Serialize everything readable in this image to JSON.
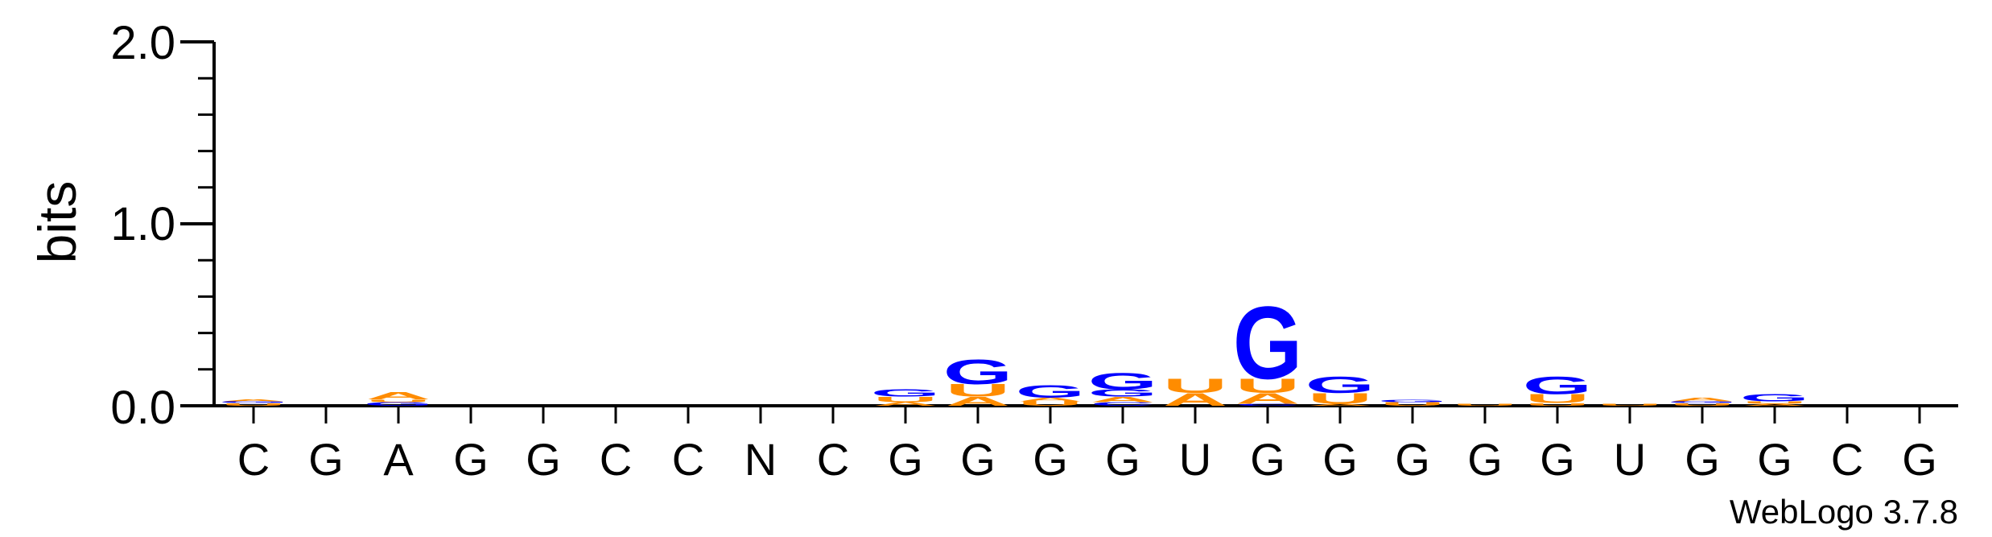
{
  "chart_data": {
    "type": "sequence-logo",
    "ylabel": "bits",
    "ylim": [
      0,
      2.0
    ],
    "y_ticks": [
      "0.0",
      "1.0",
      "2.0"
    ],
    "y_tick_values": [
      0,
      1,
      2
    ],
    "positions": [
      "C",
      "G",
      "A",
      "G",
      "G",
      "C",
      "C",
      "N",
      "C",
      "G",
      "G",
      "G",
      "G",
      "U",
      "G",
      "G",
      "G",
      "G",
      "G",
      "U",
      "G",
      "G",
      "C",
      "G"
    ],
    "columns": [
      [
        {
          "letter": "U",
          "bits": 0.015
        },
        {
          "letter": "G",
          "bits": 0.01
        },
        {
          "letter": "A",
          "bits": 0.01
        }
      ],
      [],
      [
        {
          "letter": "G",
          "bits": 0.02
        },
        {
          "letter": "U",
          "bits": 0.015
        },
        {
          "letter": "A",
          "bits": 0.04
        }
      ],
      [],
      [],
      [],
      [],
      [],
      [],
      [
        {
          "letter": "A",
          "bits": 0.02
        },
        {
          "letter": "U",
          "bits": 0.03
        },
        {
          "letter": "G",
          "bits": 0.04
        }
      ],
      [
        {
          "letter": "A",
          "bits": 0.05
        },
        {
          "letter": "U",
          "bits": 0.07
        },
        {
          "letter": "G",
          "bits": 0.14
        }
      ],
      [
        {
          "letter": "U",
          "bits": 0.025
        },
        {
          "letter": "A",
          "bits": 0.02
        },
        {
          "letter": "G",
          "bits": 0.07
        }
      ],
      [
        {
          "letter": "C",
          "bits": 0.02
        },
        {
          "letter": "A",
          "bits": 0.03
        },
        {
          "letter": "G",
          "bits": 0.04
        },
        {
          "letter": "G",
          "bits": 0.09
        }
      ],
      [
        {
          "letter": "A",
          "bits": 0.07
        },
        {
          "letter": "U",
          "bits": 0.08
        }
      ],
      [
        {
          "letter": "C",
          "bits": 0.01
        },
        {
          "letter": "A",
          "bits": 0.06
        },
        {
          "letter": "U",
          "bits": 0.08
        },
        {
          "letter": "G",
          "bits": 0.41
        }
      ],
      [
        {
          "letter": "A",
          "bits": 0.01
        },
        {
          "letter": "U",
          "bits": 0.06
        },
        {
          "letter": "G",
          "bits": 0.09
        }
      ],
      [
        {
          "letter": "U",
          "bits": 0.02
        },
        {
          "letter": "G",
          "bits": 0.015
        }
      ],
      [
        {
          "letter": "U",
          "bits": 0.01
        }
      ],
      [
        {
          "letter": "U",
          "bits": 0.015
        },
        {
          "letter": "U",
          "bits": 0.05
        },
        {
          "letter": "G",
          "bits": 0.1
        }
      ],
      [
        {
          "letter": "U",
          "bits": 0.01
        }
      ],
      [
        {
          "letter": "U",
          "bits": 0.015
        },
        {
          "letter": "G",
          "bits": 0.01
        },
        {
          "letter": "A",
          "bits": 0.02
        }
      ],
      [
        {
          "letter": "A",
          "bits": 0.01
        },
        {
          "letter": "U",
          "bits": 0.015
        },
        {
          "letter": "G",
          "bits": 0.04
        }
      ],
      [],
      []
    ],
    "colors": {
      "A": "#ff8c00",
      "U": "#ff8c00",
      "G": "#0000ff",
      "C": "#0000ff",
      "N": "#000000"
    },
    "watermark": "WebLogo 3.7.8"
  }
}
